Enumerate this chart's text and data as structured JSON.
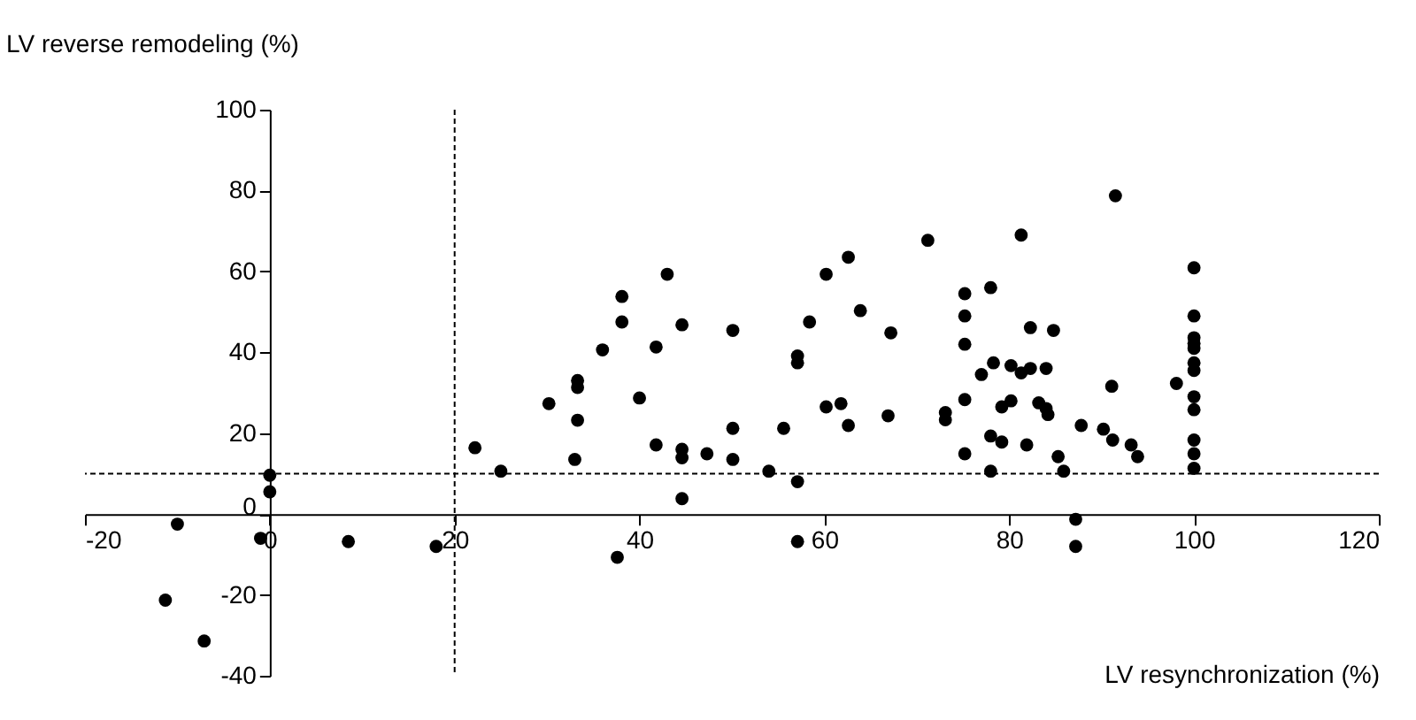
{
  "chart_data": {
    "type": "scatter",
    "xlabel": "LV resynchronization (%)",
    "ylabel": "LV reverse remodeling (%)",
    "xlim": [
      -20,
      120
    ],
    "xticks": [
      -20,
      0,
      20,
      40,
      60,
      80,
      100,
      120
    ],
    "ylim": [
      -40,
      100
    ],
    "yticks": [
      -40,
      -20,
      0,
      20,
      40,
      60,
      80,
      100
    ],
    "grid": false,
    "marker": "circle",
    "ref_lines": [
      {
        "axis": "x",
        "value": 20,
        "line_style": "dashed",
        "color": "#000000"
      },
      {
        "axis": "y",
        "value": 10,
        "line_style": "dashed",
        "color": "#000000"
      }
    ],
    "series": [
      {
        "color": "#000000",
        "x": [
          -10,
          -11.3,
          -7.1,
          -1,
          0,
          0,
          8.5,
          18,
          22.2,
          25,
          30.2,
          33.3,
          33.3,
          33.3,
          33,
          36,
          38.1,
          38.1,
          40,
          37.6,
          41.8,
          41.8,
          43,
          44.6,
          44.6,
          44.6,
          44.6,
          47.3,
          50.1,
          50.1,
          50.1,
          54,
          55.6,
          57.1,
          57.1,
          57.1,
          57.1,
          58.4,
          60.2,
          60.2,
          61.8,
          62.6,
          62.6,
          63.9,
          67.2,
          66.9,
          71.2,
          73.1,
          73.1,
          75.2,
          75.2,
          75.2,
          75.2,
          75.2,
          78,
          77,
          78.3,
          78,
          79.2,
          78,
          79.2,
          80.2,
          80.2,
          81.3,
          81.3,
          82.3,
          82.3,
          81.9,
          83.2,
          84,
          84,
          84.2,
          84.8,
          85.3,
          85.9,
          87.2,
          87.2,
          87.8,
          90.2,
          91.1,
          91.2,
          91.5,
          93.2,
          93.9,
          98.1,
          100,
          100,
          100,
          100,
          100,
          100,
          100,
          100,
          100,
          100,
          100,
          100
        ],
        "values": [
          -2.5,
          -21.3,
          -31.4,
          -6,
          9.6,
          5.5,
          -6.8,
          -8,
          16.4,
          10.6,
          27.3,
          33,
          31.3,
          23.2,
          13.5,
          40.6,
          53.8,
          47.5,
          28.7,
          -10.7,
          41.3,
          17.1,
          59.3,
          46.8,
          16,
          13.9,
          3.8,
          14.9,
          45.4,
          21.2,
          13.5,
          10.6,
          21.2,
          39.1,
          37.4,
          8,
          -6.8,
          47.5,
          59.3,
          26.5,
          27.3,
          63.5,
          21.9,
          50.3,
          44.8,
          24.3,
          67.7,
          25.1,
          23.3,
          54.5,
          49,
          42,
          28.3,
          14.9,
          56,
          34.5,
          37.4,
          19.3,
          17.8,
          10.6,
          26.5,
          28,
          36.7,
          69,
          34.9,
          46.1,
          36,
          17.1,
          27.5,
          36,
          26.1,
          24.6,
          45.4,
          14.2,
          10.6,
          -1.3,
          -8,
          21.9,
          21,
          31.6,
          18.3,
          78.7,
          17.1,
          14.2,
          32.3,
          60.9,
          49,
          43.6,
          42.2,
          41,
          37.4,
          35.5,
          29,
          25.8,
          18.3,
          14.9,
          11.3
        ]
      }
    ]
  }
}
